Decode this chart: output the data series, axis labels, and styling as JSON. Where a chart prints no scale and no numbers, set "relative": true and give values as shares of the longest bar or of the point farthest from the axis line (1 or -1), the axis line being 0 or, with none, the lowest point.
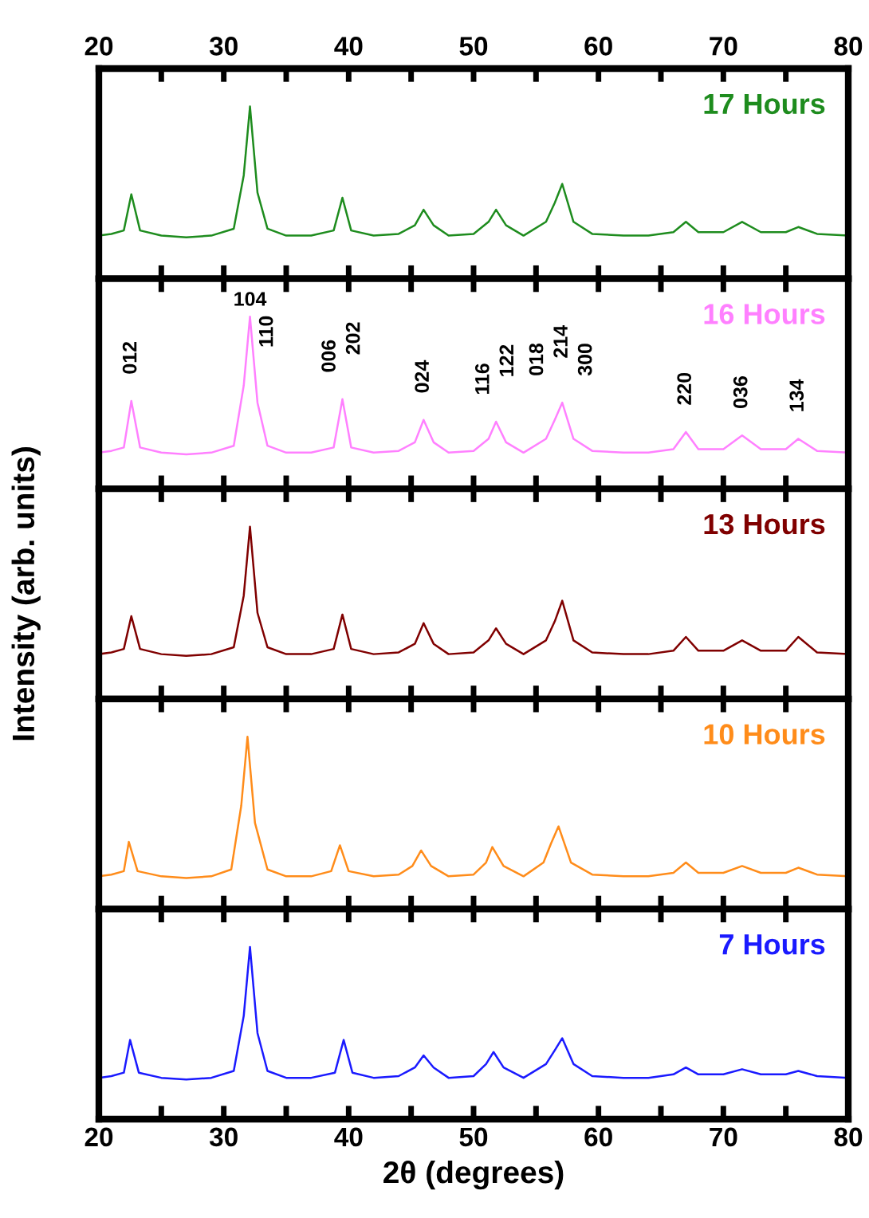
{
  "chart_data": [
    {
      "type": "line",
      "relative": true,
      "ylabel": "Intensity (arb. units)",
      "xlim": [
        20,
        80
      ],
      "x2lim": [
        20,
        80
      ],
      "tick_labels": false,
      "xticks": [
        20,
        {
          "value": 25,
          "label": null
        },
        30,
        {
          "value": 35,
          "label": null
        },
        40,
        {
          "value": 45,
          "label": null
        },
        50,
        {
          "value": 55,
          "label": null
        },
        60,
        {
          "value": 65,
          "label": null
        },
        70,
        {
          "value": 75,
          "label": null
        },
        80
      ],
      "x2ticks": [
        20,
        {
          "value": 25,
          "label": null
        },
        30,
        {
          "value": 35,
          "label": null
        },
        40,
        {
          "value": 45,
          "label": null
        },
        50,
        {
          "value": 55,
          "label": null
        },
        60,
        {
          "value": 65,
          "label": null
        },
        70,
        {
          "value": 75,
          "label": null
        },
        80
      ],
      "x": [
        20,
        21,
        22,
        22.6,
        23.3,
        25,
        27,
        29,
        30.8,
        31.6,
        32.1,
        32.7,
        33.5,
        35,
        37,
        38.8,
        39.5,
        40.2,
        42,
        44,
        45.3,
        46,
        46.8,
        48,
        50,
        51.2,
        51.8,
        52.6,
        54,
        55.8,
        56.5,
        57.1,
        58,
        59.5,
        62,
        64,
        66,
        67,
        68,
        70,
        71.5,
        73,
        75,
        76,
        77.5,
        80
      ],
      "series": [
        {
          "name": "17 Hours",
          "color": "#1e8c1e",
          "values": [
            0.25,
            0.26,
            0.28,
            0.49,
            0.28,
            0.25,
            0.24,
            0.25,
            0.29,
            0.6,
            1,
            0.5,
            0.29,
            0.25,
            0.25,
            0.28,
            0.47,
            0.28,
            0.25,
            0.26,
            0.31,
            0.4,
            0.31,
            0.25,
            0.26,
            0.33,
            0.4,
            0.31,
            0.25,
            0.33,
            0.44,
            0.55,
            0.33,
            0.26,
            0.25,
            0.25,
            0.27,
            0.33,
            0.27,
            0.27,
            0.33,
            0.27,
            0.27,
            0.3,
            0.26,
            0.25
          ]
        }
      ]
    },
    {
      "type": "line",
      "relative": true,
      "xlim": [
        20,
        80
      ],
      "tick_labels": false,
      "xticks": [
        20,
        {
          "value": 25,
          "label": null
        },
        30,
        {
          "value": 35,
          "label": null
        },
        40,
        {
          "value": 45,
          "label": null
        },
        50,
        {
          "value": 55,
          "label": null
        },
        60,
        {
          "value": 65,
          "label": null
        },
        70,
        {
          "value": 75,
          "label": null
        },
        80
      ],
      "x": [
        20,
        21,
        22,
        22.6,
        23.3,
        25,
        27,
        29,
        30.8,
        31.6,
        32.1,
        32.7,
        33.5,
        35,
        37,
        38.8,
        39.5,
        40.2,
        42,
        44,
        45.3,
        46,
        46.8,
        48,
        50,
        51.2,
        51.8,
        52.6,
        54,
        55.8,
        56.5,
        57.1,
        58,
        59.5,
        62,
        64,
        66,
        67,
        68,
        70,
        71.5,
        73,
        75,
        76,
        77.5,
        80
      ],
      "series": [
        {
          "name": "16 Hours",
          "color": "#ff80ff",
          "values": [
            0.21,
            0.22,
            0.24,
            0.51,
            0.24,
            0.21,
            0.2,
            0.21,
            0.25,
            0.6,
            1,
            0.5,
            0.25,
            0.21,
            0.21,
            0.24,
            0.52,
            0.24,
            0.21,
            0.22,
            0.27,
            0.4,
            0.27,
            0.21,
            0.22,
            0.29,
            0.39,
            0.27,
            0.21,
            0.29,
            0.4,
            0.5,
            0.29,
            0.22,
            0.21,
            0.21,
            0.23,
            0.33,
            0.23,
            0.23,
            0.31,
            0.23,
            0.23,
            0.29,
            0.22,
            0.21
          ]
        }
      ],
      "annotations": [
        {
          "text": "012",
          "x": 22.6,
          "y": 0.51
        },
        {
          "text": "104",
          "x": 32.1,
          "y": 1
        },
        {
          "text": "110",
          "x": 32.1,
          "y": 1
        },
        {
          "text": "006",
          "x": 39.5,
          "y": 0.52
        },
        {
          "text": "202",
          "x": 39.5,
          "y": 0.52
        },
        {
          "text": "024",
          "x": 46,
          "y": 0.4
        },
        {
          "text": "116",
          "x": 51.8,
          "y": 0.39
        },
        {
          "text": "122",
          "x": 51.8,
          "y": 0.39
        },
        {
          "text": "018",
          "x": 57.1,
          "y": 0.5
        },
        {
          "text": "214",
          "x": 57.1,
          "y": 0.5
        },
        {
          "text": "300",
          "x": 57.1,
          "y": 0.5
        },
        {
          "text": "220",
          "x": 67,
          "y": 0.33
        },
        {
          "text": "036",
          "x": 71.5,
          "y": 0.31
        },
        {
          "text": "134",
          "x": 76,
          "y": 0.29
        }
      ]
    },
    {
      "type": "line",
      "relative": true,
      "xlim": [
        20,
        80
      ],
      "tick_labels": false,
      "xticks": [
        20,
        {
          "value": 25,
          "label": null
        },
        30,
        {
          "value": 35,
          "label": null
        },
        40,
        {
          "value": 45,
          "label": null
        },
        50,
        {
          "value": 55,
          "label": null
        },
        60,
        {
          "value": 65,
          "label": null
        },
        70,
        {
          "value": 75,
          "label": null
        },
        80
      ],
      "x": [
        20,
        21,
        22,
        22.6,
        23.3,
        25,
        27,
        29,
        30.8,
        31.6,
        32.1,
        32.7,
        33.5,
        35,
        37,
        38.8,
        39.5,
        40.2,
        42,
        44,
        45.3,
        46,
        46.8,
        48,
        50,
        51.2,
        51.8,
        52.6,
        54,
        55.8,
        56.5,
        57.1,
        58,
        59.5,
        62,
        64,
        66,
        67,
        68,
        70,
        71.5,
        73,
        75,
        76,
        77.5,
        80
      ],
      "series": [
        {
          "name": "13 Hours",
          "color": "#800000",
          "values": [
            0.26,
            0.27,
            0.29,
            0.48,
            0.29,
            0.26,
            0.25,
            0.26,
            0.3,
            0.6,
            1,
            0.5,
            0.3,
            0.26,
            0.26,
            0.29,
            0.49,
            0.29,
            0.26,
            0.27,
            0.32,
            0.44,
            0.32,
            0.26,
            0.27,
            0.34,
            0.41,
            0.32,
            0.26,
            0.34,
            0.45,
            0.57,
            0.34,
            0.27,
            0.26,
            0.26,
            0.28,
            0.36,
            0.28,
            0.28,
            0.34,
            0.28,
            0.28,
            0.36,
            0.27,
            0.26
          ]
        }
      ]
    },
    {
      "type": "line",
      "relative": true,
      "xlim": [
        20,
        80
      ],
      "tick_labels": false,
      "xticks": [
        20,
        {
          "value": 25,
          "label": null
        },
        30,
        {
          "value": 35,
          "label": null
        },
        40,
        {
          "value": 45,
          "label": null
        },
        50,
        {
          "value": 55,
          "label": null
        },
        60,
        {
          "value": 65,
          "label": null
        },
        70,
        {
          "value": 75,
          "label": null
        },
        80
      ],
      "x": [
        20,
        21,
        22,
        22.4,
        23.1,
        25,
        27,
        29,
        30.6,
        31.4,
        31.9,
        32.5,
        33.5,
        35,
        37,
        38.6,
        39.3,
        40.0,
        42,
        44,
        45.1,
        45.8,
        46.6,
        48,
        50,
        51.0,
        51.5,
        52.4,
        54,
        55.6,
        56.2,
        56.8,
        57.8,
        59.5,
        62,
        64,
        66,
        67,
        68,
        70,
        71.5,
        73,
        75,
        76,
        77.5,
        80
      ],
      "series": [
        {
          "name": "10 Hours",
          "color": "#ff8c1a",
          "values": [
            0.19,
            0.2,
            0.22,
            0.39,
            0.22,
            0.19,
            0.18,
            0.19,
            0.23,
            0.6,
            1,
            0.5,
            0.23,
            0.19,
            0.19,
            0.22,
            0.37,
            0.22,
            0.19,
            0.2,
            0.25,
            0.34,
            0.25,
            0.19,
            0.2,
            0.27,
            0.36,
            0.25,
            0.19,
            0.27,
            0.38,
            0.48,
            0.27,
            0.2,
            0.19,
            0.19,
            0.21,
            0.27,
            0.21,
            0.21,
            0.25,
            0.21,
            0.21,
            0.24,
            0.2,
            0.19
          ]
        }
      ]
    },
    {
      "type": "line",
      "relative": true,
      "xlabel": "2θ (degrees)",
      "xlim": [
        20,
        80
      ],
      "xticks": [
        20,
        {
          "value": 25,
          "label": null
        },
        30,
        {
          "value": 35,
          "label": null
        },
        40,
        {
          "value": 45,
          "label": null
        },
        50,
        {
          "value": 55,
          "label": null
        },
        60,
        {
          "value": 65,
          "label": null
        },
        70,
        {
          "value": 75,
          "label": null
        },
        80
      ],
      "x": [
        20,
        21,
        22,
        22.5,
        23.2,
        25,
        27,
        29,
        30.8,
        31.6,
        32.1,
        32.7,
        33.5,
        35,
        37,
        38.9,
        39.6,
        40.3,
        42,
        44,
        45.3,
        46,
        46.8,
        48,
        50,
        51.0,
        51.6,
        52.4,
        54,
        55.8,
        56.5,
        57.1,
        58,
        59.5,
        62,
        64,
        66,
        67,
        68,
        70,
        71.5,
        73,
        75,
        76,
        77.5,
        80
      ],
      "series": [
        {
          "name": "7 Hours",
          "color": "#1a1aff",
          "values": [
            0.24,
            0.25,
            0.27,
            0.46,
            0.27,
            0.24,
            0.23,
            0.24,
            0.28,
            0.6,
            1,
            0.5,
            0.28,
            0.24,
            0.24,
            0.27,
            0.46,
            0.27,
            0.24,
            0.25,
            0.3,
            0.37,
            0.3,
            0.24,
            0.25,
            0.32,
            0.39,
            0.3,
            0.24,
            0.32,
            0.4,
            0.47,
            0.32,
            0.25,
            0.24,
            0.24,
            0.26,
            0.3,
            0.26,
            0.26,
            0.29,
            0.26,
            0.26,
            0.28,
            0.25,
            0.24
          ]
        }
      ]
    }
  ]
}
